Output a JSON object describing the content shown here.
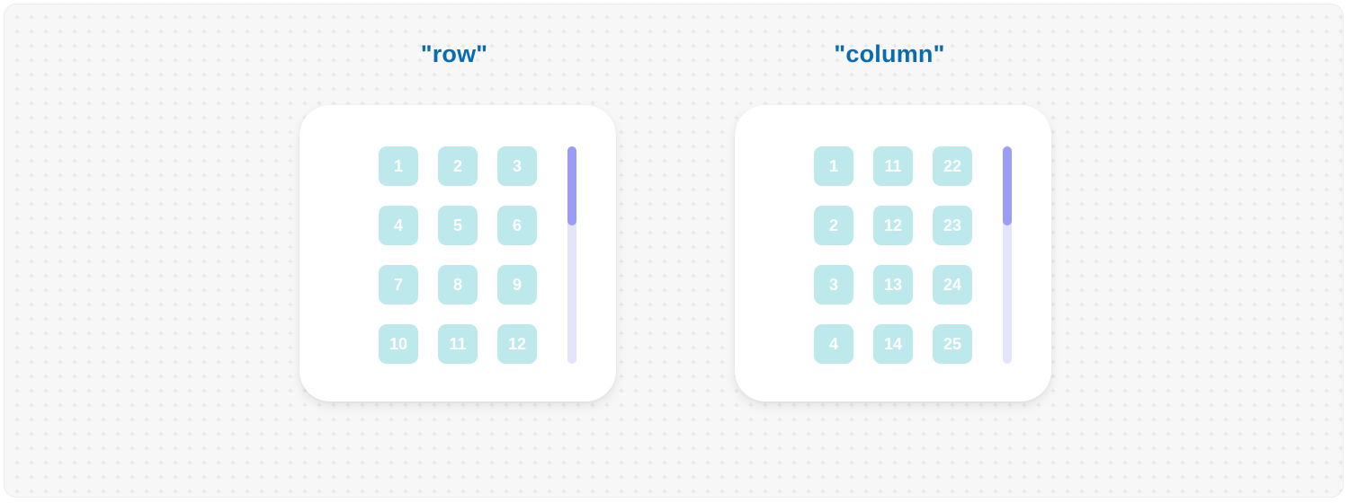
{
  "panels": [
    {
      "id": "row",
      "title": "\"row\"",
      "cells": [
        [
          "1",
          "2",
          "3"
        ],
        [
          "4",
          "5",
          "6"
        ],
        [
          "7",
          "8",
          "9"
        ],
        [
          "10",
          "11",
          "12"
        ]
      ],
      "scroll_position": 0
    },
    {
      "id": "column",
      "title": "\"column\"",
      "cells": [
        [
          "1",
          "11",
          "22"
        ],
        [
          "2",
          "12",
          "23"
        ],
        [
          "3",
          "13",
          "24"
        ],
        [
          "4",
          "14",
          "25"
        ]
      ],
      "scroll_position": 0
    }
  ],
  "colors": {
    "title": "#0b6bb0",
    "cell": "#bde8ec",
    "scroll_track": "#e4e5fb",
    "scroll_thumb": "#9a9cf5"
  }
}
